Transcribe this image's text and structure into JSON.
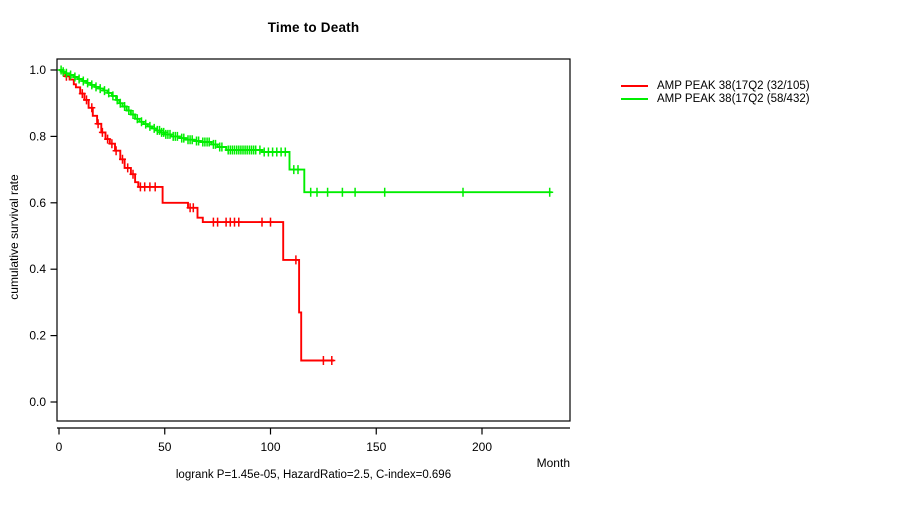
{
  "title": "Time to Death",
  "ylabel": "cumulative survival rate",
  "xlabel": "Month",
  "annotation": "logrank P=1.45e-05, HazardRatio=2.5, C-index=0.696",
  "legend": {
    "position": "right-outside",
    "items": [
      {
        "label": "AMP PEAK 38(17Q2 (32/105)",
        "color": "#ff0000"
      },
      {
        "label": "AMP PEAK 38(17Q2 (58/432)",
        "color": "#00ee00"
      }
    ]
  },
  "chart_data": {
    "type": "line",
    "subtype": "kaplan-meier-step",
    "title": "Time to Death",
    "xlabel": "Month",
    "ylabel": "cumulative survival rate",
    "xlim": [
      0,
      242
    ],
    "ylim": [
      0.0,
      1.0
    ],
    "xticks": [
      0,
      50,
      100,
      150,
      200
    ],
    "xtick_labels": [
      "0",
      "50",
      "100",
      "150",
      "200"
    ],
    "yticks": [
      0.0,
      0.2,
      0.4,
      0.6,
      0.8,
      1.0
    ],
    "ytick_labels": [
      "0.0",
      "0.2",
      "0.4",
      "0.6",
      "0.8",
      "1.0"
    ],
    "grid": false,
    "legend_position": "right-outside",
    "series": [
      {
        "name": "AMP PEAK 38(17Q2 (32/105)",
        "color": "#ff0000",
        "events_over_n": "32/105",
        "steps": [
          [
            0,
            1.0
          ],
          [
            2,
            0.99
          ],
          [
            3,
            0.981
          ],
          [
            5,
            0.971
          ],
          [
            7,
            0.957
          ],
          [
            8,
            0.948
          ],
          [
            10,
            0.929
          ],
          [
            12,
            0.91
          ],
          [
            14,
            0.886
          ],
          [
            16,
            0.862
          ],
          [
            18,
            0.838
          ],
          [
            20,
            0.812
          ],
          [
            22,
            0.792
          ],
          [
            24,
            0.778
          ],
          [
            26.5,
            0.757
          ],
          [
            29,
            0.731
          ],
          [
            31,
            0.705
          ],
          [
            34,
            0.686
          ],
          [
            36,
            0.662
          ],
          [
            37.5,
            0.648
          ],
          [
            49,
            0.6
          ],
          [
            61,
            0.585
          ],
          [
            65.5,
            0.555
          ],
          [
            68,
            0.542
          ],
          [
            106,
            0.428
          ],
          [
            113.5,
            0.27
          ],
          [
            114.5,
            0.125
          ]
        ],
        "end_month": 130,
        "censor_months": [
          3.5,
          11,
          13,
          15.5,
          18.5,
          20.5,
          23,
          25,
          27,
          30,
          32.5,
          35,
          38.5,
          40.5,
          43,
          45.5,
          62,
          63.5,
          73,
          75,
          79,
          81,
          83,
          85,
          96,
          100,
          112,
          125,
          129
        ]
      },
      {
        "name": "AMP PEAK 38(17Q2 (58/432)",
        "color": "#00ee00",
        "events_over_n": "58/432",
        "steps": [
          [
            0,
            1.0
          ],
          [
            1.5,
            0.995
          ],
          [
            3,
            0.99
          ],
          [
            5,
            0.985
          ],
          [
            7,
            0.979
          ],
          [
            9,
            0.973
          ],
          [
            11,
            0.967
          ],
          [
            13,
            0.961
          ],
          [
            15,
            0.955
          ],
          [
            17,
            0.949
          ],
          [
            19,
            0.944
          ],
          [
            21,
            0.938
          ],
          [
            23,
            0.931
          ],
          [
            25,
            0.922
          ],
          [
            27,
            0.91
          ],
          [
            28.5,
            0.9
          ],
          [
            30,
            0.89
          ],
          [
            32,
            0.878
          ],
          [
            34,
            0.866
          ],
          [
            36,
            0.853
          ],
          [
            38,
            0.844
          ],
          [
            40,
            0.837
          ],
          [
            42,
            0.83
          ],
          [
            44,
            0.824
          ],
          [
            46,
            0.818
          ],
          [
            48,
            0.812
          ],
          [
            50,
            0.806
          ],
          [
            53,
            0.8
          ],
          [
            57,
            0.795
          ],
          [
            60,
            0.79
          ],
          [
            64,
            0.786
          ],
          [
            67,
            0.783
          ],
          [
            72,
            0.776
          ],
          [
            75,
            0.768
          ],
          [
            79,
            0.759
          ],
          [
            96,
            0.753
          ],
          [
            109,
            0.7
          ],
          [
            116,
            0.632
          ]
        ],
        "end_month": 233,
        "censor_months": [
          1,
          2,
          3.5,
          5.5,
          7.5,
          9.5,
          11.5,
          13.5,
          15.5,
          17.5,
          19.5,
          21.5,
          23.5,
          25.5,
          27.5,
          29,
          31,
          33,
          35,
          37,
          39,
          41,
          43,
          45,
          46.5,
          47.5,
          48.5,
          49.5,
          50.5,
          51.5,
          52.5,
          54,
          55,
          56,
          58,
          59,
          61,
          62,
          63,
          65,
          66,
          68,
          69,
          70,
          71,
          73,
          74,
          76,
          77,
          80,
          81,
          82,
          83,
          84,
          85,
          86,
          87,
          88,
          89,
          90,
          91,
          92,
          93,
          95,
          97,
          99,
          101,
          103,
          105,
          107,
          111,
          113,
          119,
          122,
          127,
          134,
          140,
          154,
          191,
          232
        ]
      }
    ]
  }
}
